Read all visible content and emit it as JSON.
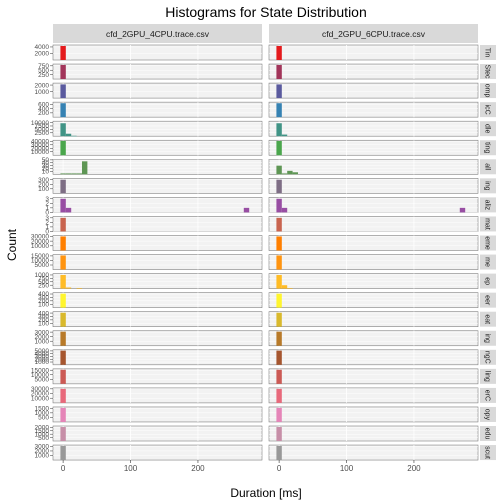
{
  "chart_data": {
    "type": "bar",
    "title": "Histograms for State Distribution",
    "xlabel": "Duration [ms]",
    "ylabel": "Count",
    "xlim": [
      -15,
      295
    ],
    "x_ticks": [
      0,
      100,
      200
    ],
    "columns": [
      "cfd_2GPU_4CPU.trace.csv",
      "cfd_2GPU_6CPU.trace.csv"
    ],
    "rows": [
      {
        "state": "Tin",
        "color": "#e41a1c",
        "y_ticks": [
          2000,
          4000
        ],
        "ymax": 4600,
        "bars": [
          [
            [
              0,
              4300
            ]
          ],
          [
            [
              0,
              4300
            ]
          ]
        ]
      },
      {
        "state": "Stec",
        "color": "#a2355a",
        "y_ticks": [
          250,
          500,
          750
        ],
        "ymax": 850,
        "bars": [
          [
            [
              0,
              800
            ]
          ],
          [
            [
              0,
              800
            ]
          ]
        ]
      },
      {
        "state": "omp",
        "color": "#5a5a9e",
        "y_ticks": [
          1000,
          2000
        ],
        "ymax": 2300,
        "bars": [
          [
            [
              0,
              2100
            ]
          ],
          [
            [
              0,
              2100
            ]
          ]
        ]
      },
      {
        "state": "icC",
        "color": "#3682b3",
        "y_ticks": [
          200,
          400,
          600
        ],
        "ymax": 700,
        "bars": [
          [
            [
              0,
              650
            ]
          ],
          [
            [
              0,
              650
            ]
          ]
        ]
      },
      {
        "state": "dle",
        "color": "#419486",
        "y_ticks": [
          2500,
          5000,
          7500,
          10000
        ],
        "ymax": 11000,
        "bars": [
          [
            [
              0,
              9500
            ],
            [
              8,
              1800
            ],
            [
              16,
              300
            ]
          ],
          [
            [
              0,
              9500
            ],
            [
              8,
              1200
            ]
          ]
        ]
      },
      {
        "state": "ting",
        "color": "#4aa64c",
        "y_ticks": [
          10000,
          20000,
          30000,
          40000
        ],
        "ymax": 43000,
        "bars": [
          [
            [
              0,
              41000
            ]
          ],
          [
            [
              0,
              41000
            ]
          ]
        ]
      },
      {
        "state": "all",
        "color": "#5e9654",
        "y_ticks": [
          10,
          20,
          30,
          40,
          50
        ],
        "ymax": 52,
        "bars": [
          [
            [
              0,
              3
            ],
            [
              8,
              3
            ],
            [
              16,
              3
            ],
            [
              24,
              3
            ],
            [
              32,
              45
            ]
          ],
          [
            [
              0,
              30
            ],
            [
              8,
              3
            ],
            [
              16,
              12
            ],
            [
              24,
              7
            ]
          ]
        ]
      },
      {
        "state": "ing",
        "color": "#7e6e85",
        "y_ticks": [
          100,
          200,
          300
        ],
        "ymax": 330,
        "bars": [
          [
            [
              0,
              300
            ]
          ],
          [
            [
              0,
              300
            ]
          ]
        ]
      },
      {
        "state": "aliz",
        "color": "#984ea3",
        "y_ticks": [
          0,
          1,
          2,
          3
        ],
        "ymax": 3.3,
        "bars": [
          [
            [
              0,
              3
            ],
            [
              8,
              1
            ],
            [
              272,
              1
            ]
          ],
          [
            [
              0,
              3
            ],
            [
              8,
              1
            ],
            [
              272,
              1
            ]
          ]
        ]
      },
      {
        "state": "mat",
        "color": "#c9644f",
        "y_ticks": [
          0,
          1,
          2,
          3
        ],
        "ymax": 3.3,
        "bars": [
          [
            [
              0,
              3
            ]
          ],
          [
            [
              0,
              3
            ]
          ]
        ]
      },
      {
        "state": "eme",
        "color": "#ff7f00",
        "y_ticks": [
          10000,
          20000,
          30000
        ],
        "ymax": 32000,
        "bars": [
          [
            [
              0,
              30000
            ]
          ],
          [
            [
              0,
              30000
            ]
          ]
        ]
      },
      {
        "state": "me",
        "color": "#ff9410",
        "y_ticks": [
          5000,
          10000,
          15000
        ],
        "ymax": 16500,
        "bars": [
          [
            [
              0,
              15500
            ]
          ],
          [
            [
              0,
              15500
            ]
          ]
        ]
      },
      {
        "state": "ep",
        "color": "#ffbc26",
        "y_ticks": [
          250,
          500,
          750,
          1000
        ],
        "ymax": 1100,
        "bars": [
          [
            [
              0,
              1000
            ],
            [
              8,
              80
            ],
            [
              24,
              40
            ]
          ],
          [
            [
              0,
              1000
            ],
            [
              8,
              250
            ],
            [
              16,
              40
            ]
          ]
        ]
      },
      {
        "state": "eer",
        "color": "#fff52e",
        "y_ticks": [
          100,
          200,
          300,
          400
        ],
        "ymax": 440,
        "bars": [
          [
            [
              0,
              410
            ]
          ],
          [
            [
              0,
              410
            ]
          ]
        ]
      },
      {
        "state": "eat",
        "color": "#d9b92c",
        "y_ticks": [
          100,
          200,
          300,
          400
        ],
        "ymax": 440,
        "bars": [
          [
            [
              0,
              410
            ]
          ],
          [
            [
              0,
              410
            ]
          ]
        ]
      },
      {
        "state": "ing",
        "color": "#b87a29",
        "y_ticks": [
          1000,
          2000,
          3000
        ],
        "ymax": 3300,
        "bars": [
          [
            [
              0,
              3100
            ]
          ],
          [
            [
              0,
              3100
            ]
          ]
        ]
      },
      {
        "state": "ngC",
        "color": "#a6562f",
        "y_ticks": [
          1000,
          2000,
          3000,
          4000,
          5000
        ],
        "ymax": 5400,
        "bars": [
          [
            [
              0,
              5100
            ]
          ],
          [
            [
              0,
              5100
            ]
          ]
        ]
      },
      {
        "state": "ling",
        "color": "#cc5a55",
        "y_ticks": [
          5000,
          10000,
          15000
        ],
        "ymax": 16500,
        "bars": [
          [
            [
              0,
              15500
            ]
          ],
          [
            [
              0,
              15500
            ]
          ]
        ]
      },
      {
        "state": "erC",
        "color": "#e8697b",
        "y_ticks": [
          10000,
          20000,
          30000
        ],
        "ymax": 32000,
        "bars": [
          [
            [
              0,
              30000
            ]
          ],
          [
            [
              0,
              30000
            ]
          ]
        ]
      },
      {
        "state": "opy",
        "color": "#e585b8",
        "y_ticks": [
          500,
          1000,
          1500
        ],
        "ymax": 1650,
        "bars": [
          [
            [
              0,
              1550
            ]
          ],
          [
            [
              0,
              1550
            ]
          ]
        ]
      },
      {
        "state": "edu",
        "color": "#c78fa8",
        "y_ticks": [
          500,
          1000,
          1500,
          2000
        ],
        "ymax": 2200,
        "bars": [
          [
            [
              0,
              2050
            ]
          ],
          [
            [
              0,
              2050
            ]
          ]
        ]
      },
      {
        "state": "scut",
        "color": "#999999",
        "y_ticks": [
          1000,
          2000,
          3000
        ],
        "ymax": 3300,
        "bars": [
          [
            [
              0,
              3100
            ]
          ],
          [
            [
              0,
              3100
            ]
          ]
        ]
      }
    ]
  }
}
